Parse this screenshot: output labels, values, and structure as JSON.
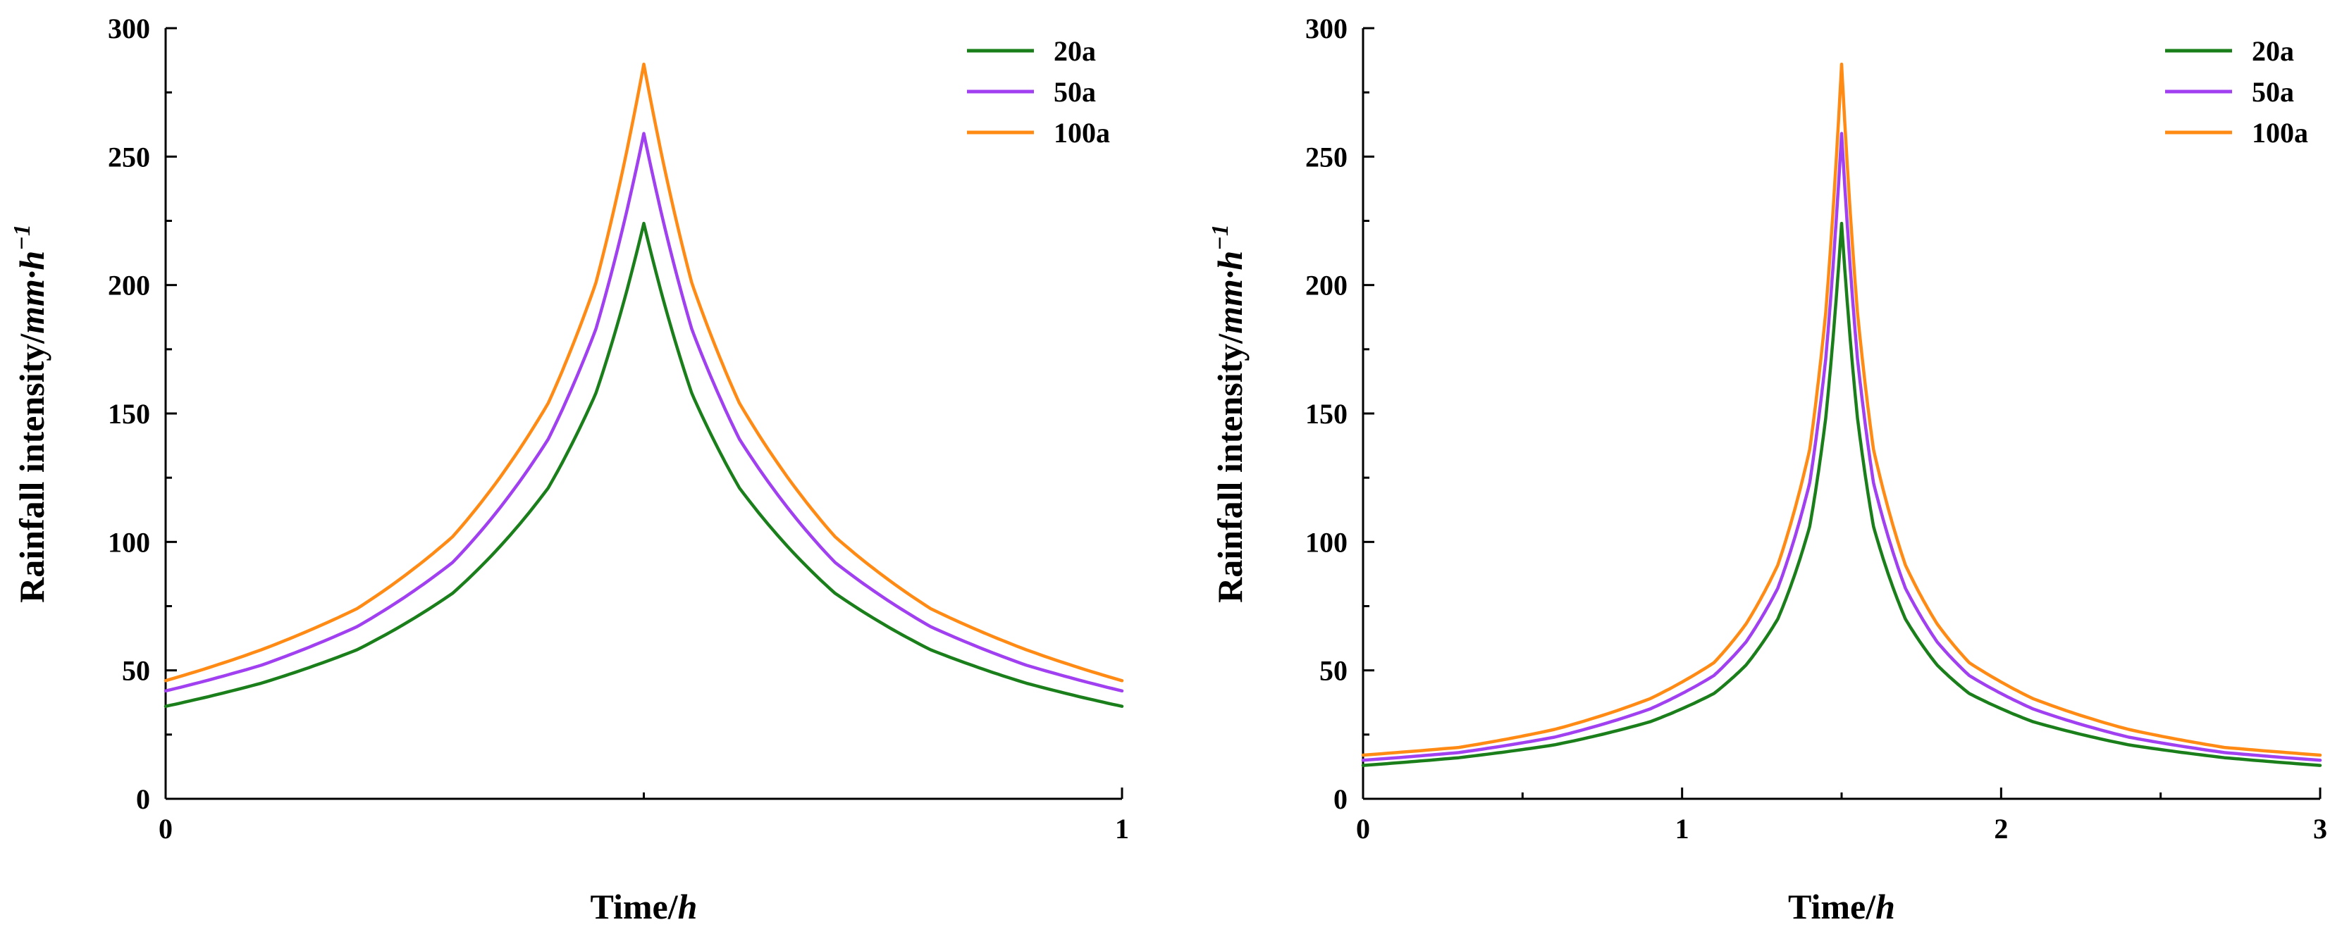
{
  "chart_data": [
    {
      "type": "line",
      "title": "",
      "xlabel": "Time/",
      "xlabel_var": "h",
      "ylabel": "Rainfall intensity/",
      "ylabel_unit": "mm·h",
      "ylabel_exp": "−1",
      "xlim": [
        0,
        1
      ],
      "ylim": [
        0,
        300
      ],
      "x_ticks": [
        0,
        1
      ],
      "x_minor_ticks": [
        0.5
      ],
      "y_ticks": [
        0,
        50,
        100,
        150,
        200,
        250,
        300
      ],
      "y_minor_step": 25,
      "peak_time": 0.5,
      "legend_position": "top-right",
      "series": [
        {
          "name": "20a",
          "color": "#1a7f1a",
          "x": [
            0,
            0.1,
            0.2,
            0.3,
            0.4,
            0.45,
            0.5,
            0.55,
            0.6,
            0.7,
            0.8,
            0.9,
            1.0
          ],
          "values": [
            36,
            45,
            58,
            80,
            121,
            158,
            224,
            158,
            121,
            80,
            58,
            45,
            36
          ]
        },
        {
          "name": "50a",
          "color": "#a040f0",
          "x": [
            0,
            0.1,
            0.2,
            0.3,
            0.4,
            0.45,
            0.5,
            0.55,
            0.6,
            0.7,
            0.8,
            0.9,
            1.0
          ],
          "values": [
            42,
            52,
            67,
            92,
            140,
            183,
            259,
            183,
            140,
            92,
            67,
            52,
            42
          ]
        },
        {
          "name": "100a",
          "color": "#ff8a14",
          "x": [
            0,
            0.1,
            0.2,
            0.3,
            0.4,
            0.45,
            0.5,
            0.55,
            0.6,
            0.7,
            0.8,
            0.9,
            1.0
          ],
          "values": [
            46,
            58,
            74,
            102,
            154,
            201,
            286,
            201,
            154,
            102,
            74,
            58,
            46
          ]
        }
      ]
    },
    {
      "type": "line",
      "title": "",
      "xlabel": "Time/",
      "xlabel_var": "h",
      "ylabel": "Rainfall intensity/",
      "ylabel_unit": "mm·h",
      "ylabel_exp": "−1",
      "xlim": [
        0,
        3
      ],
      "ylim": [
        0,
        300
      ],
      "x_ticks": [
        0,
        1,
        2,
        3
      ],
      "x_minor_ticks": [
        0.5,
        1.5,
        2.5
      ],
      "y_ticks": [
        0,
        50,
        100,
        150,
        200,
        250,
        300
      ],
      "y_minor_step": 25,
      "peak_time": 1.5,
      "legend_position": "top-right",
      "series": [
        {
          "name": "20a",
          "color": "#1a7f1a",
          "x": [
            0,
            0.3,
            0.6,
            0.9,
            1.1,
            1.2,
            1.3,
            1.4,
            1.45,
            1.5,
            1.55,
            1.6,
            1.7,
            1.8,
            1.9,
            2.1,
            2.4,
            2.7,
            3.0
          ],
          "values": [
            13,
            16,
            21,
            30,
            41,
            52,
            70,
            106,
            148,
            224,
            148,
            106,
            70,
            52,
            41,
            30,
            21,
            16,
            13
          ]
        },
        {
          "name": "50a",
          "color": "#a040f0",
          "x": [
            0,
            0.3,
            0.6,
            0.9,
            1.1,
            1.2,
            1.3,
            1.4,
            1.45,
            1.5,
            1.55,
            1.6,
            1.7,
            1.8,
            1.9,
            2.1,
            2.4,
            2.7,
            3.0
          ],
          "values": [
            15,
            18,
            24,
            35,
            48,
            61,
            82,
            123,
            171,
            259,
            171,
            123,
            82,
            61,
            48,
            35,
            24,
            18,
            15
          ]
        },
        {
          "name": "100a",
          "color": "#ff8a14",
          "x": [
            0,
            0.3,
            0.6,
            0.9,
            1.1,
            1.2,
            1.3,
            1.4,
            1.45,
            1.5,
            1.55,
            1.6,
            1.7,
            1.8,
            1.9,
            2.1,
            2.4,
            2.7,
            3.0
          ],
          "values": [
            17,
            20,
            27,
            39,
            53,
            68,
            91,
            136,
            189,
            286,
            189,
            136,
            91,
            68,
            53,
            39,
            27,
            20,
            17
          ]
        }
      ]
    }
  ]
}
